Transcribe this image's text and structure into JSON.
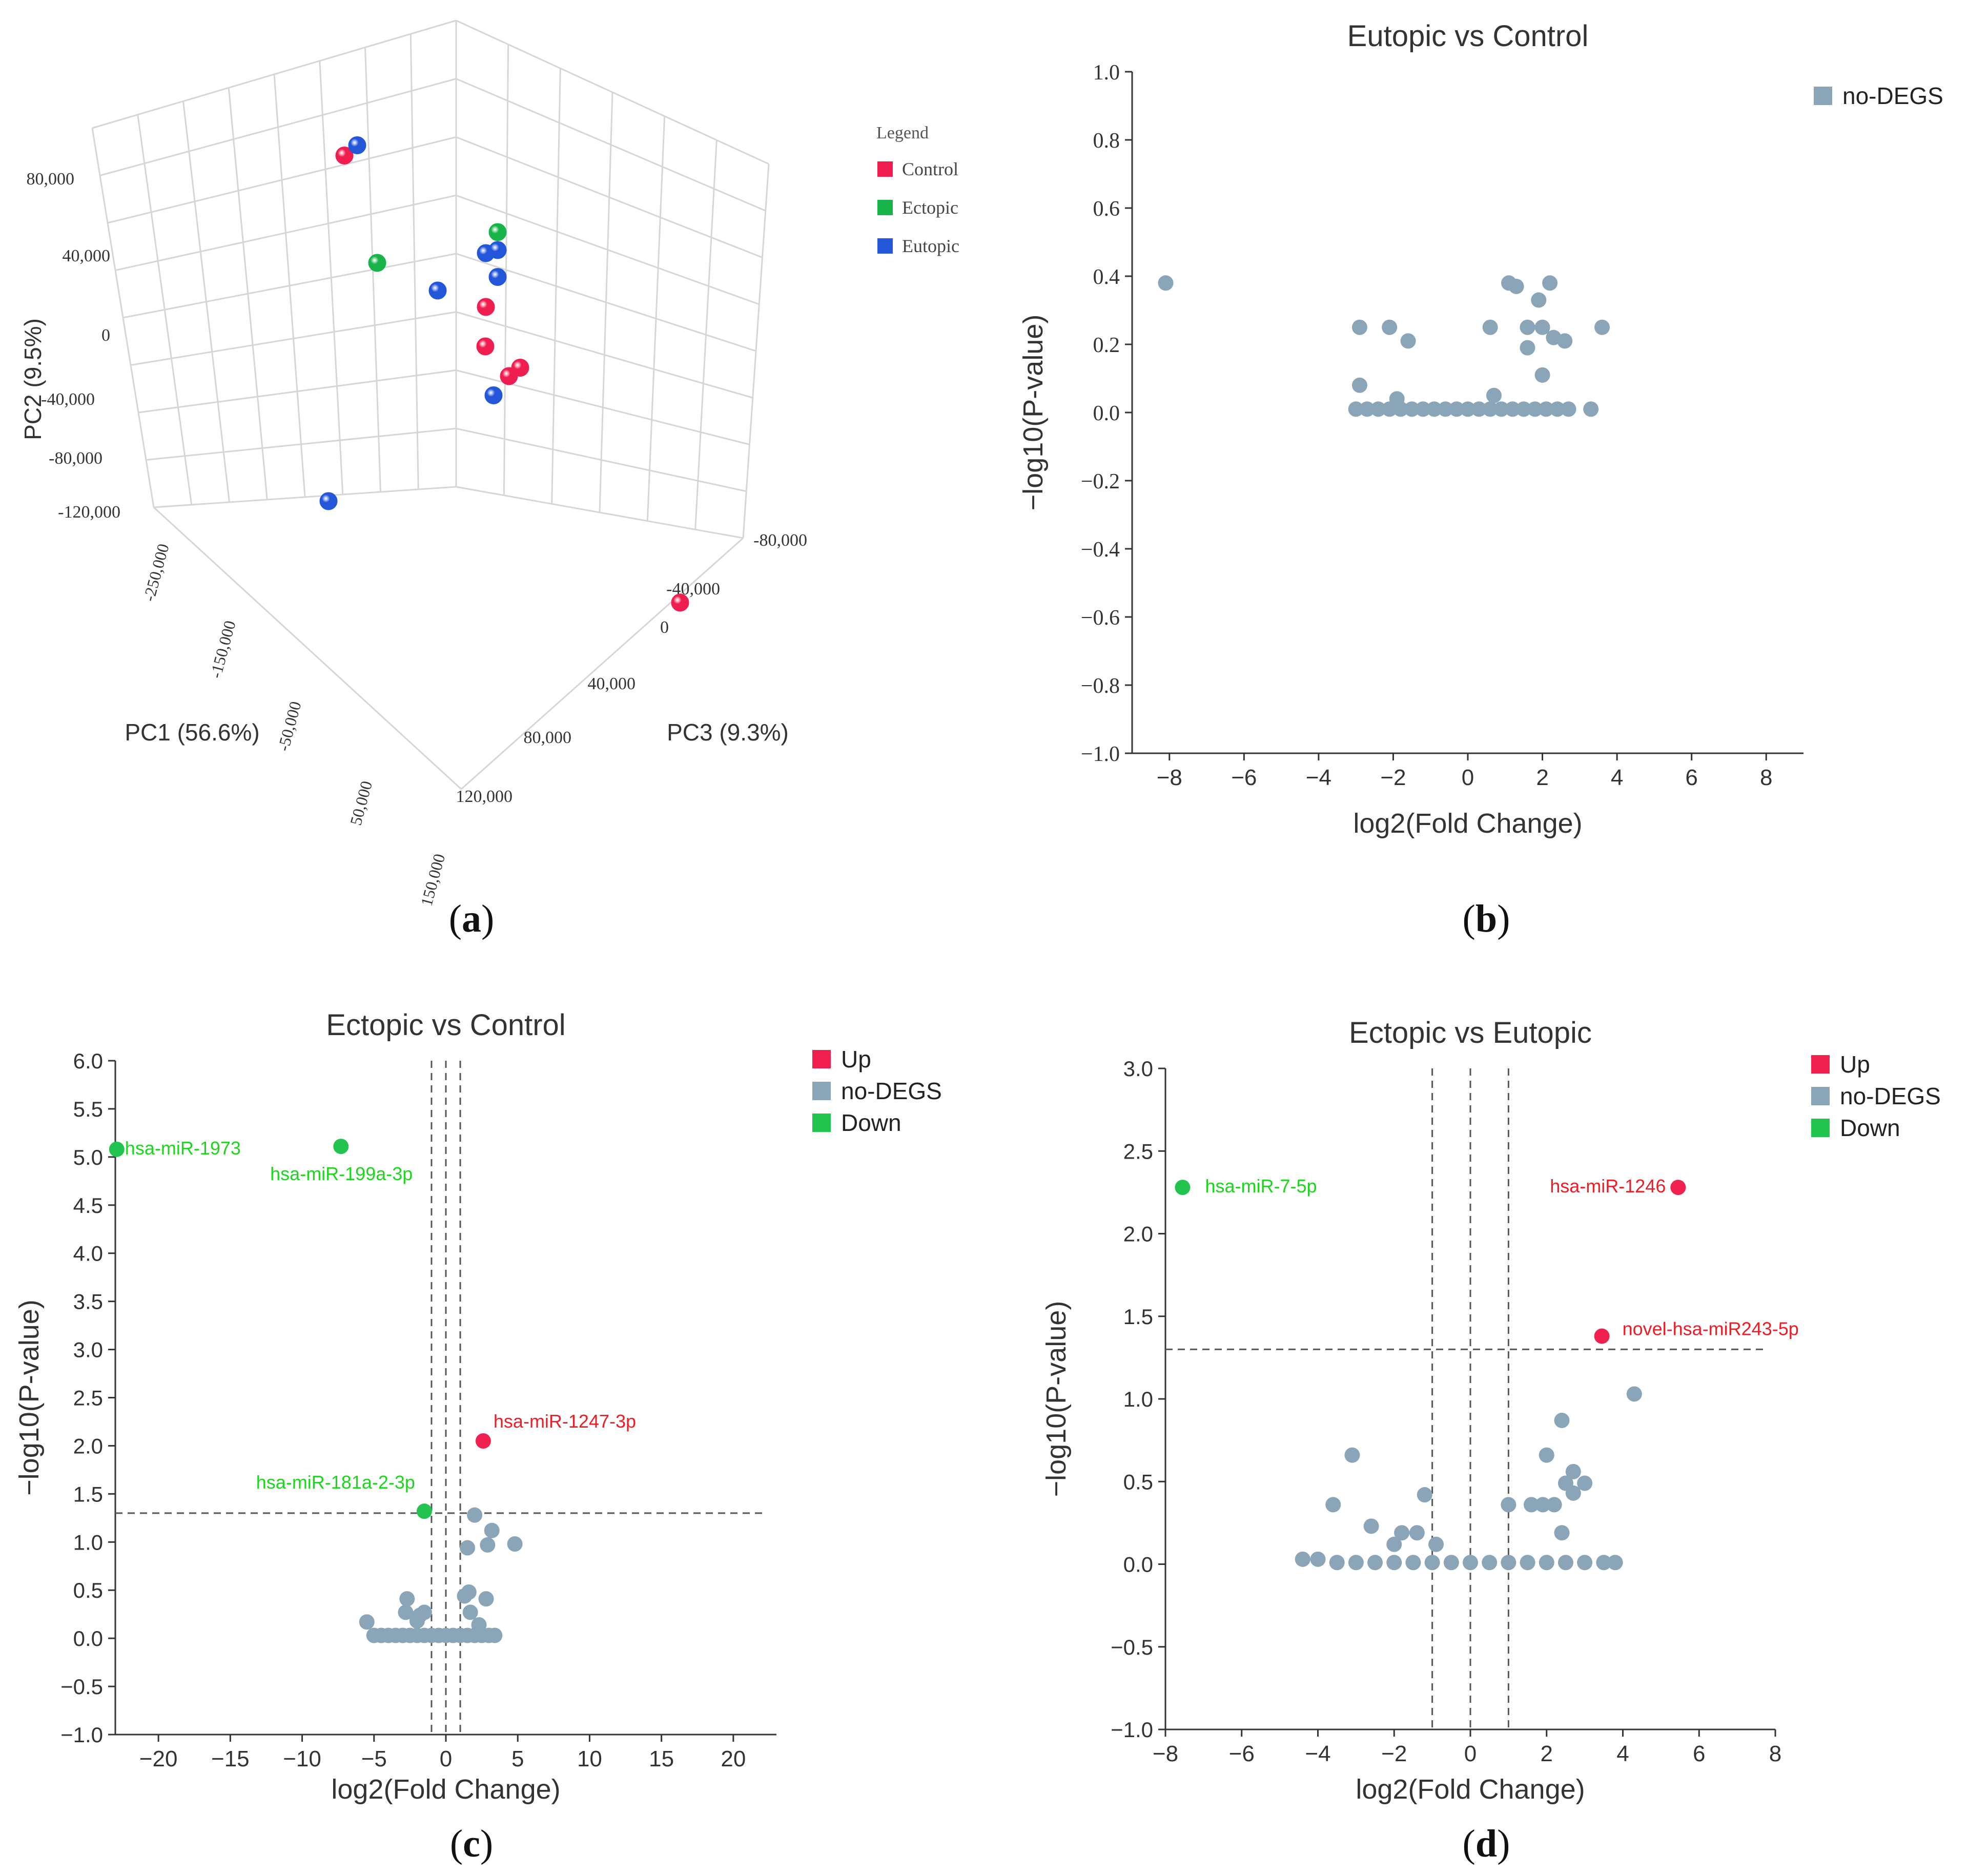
{
  "colors": {
    "control": "#ef1d50",
    "ectopic": "#18b44a",
    "eutopic": "#2456d9",
    "nodeg": "#8aa4b8",
    "up": "#f0204f",
    "down": "#22c44f",
    "down_label": "#1ed41e",
    "up_label": "#ee1c25",
    "grid": "#d6d6d6"
  },
  "panel_labels": {
    "a": "a",
    "b": "b",
    "c": "c",
    "d": "d"
  },
  "chart_data": [
    {
      "id": "a",
      "type": "scatter3d",
      "title": "",
      "axes": {
        "pc1": {
          "label": "PC1 (56.6%)",
          "ticks": [
            "-250,000",
            "-150,000",
            "-50,000",
            "50,000",
            "150,000"
          ]
        },
        "pc2": {
          "label": "PC2 (9.5%)",
          "ticks": [
            "80,000",
            "40,000",
            "0",
            "-40,000",
            "-80,000",
            "-120,000"
          ]
        },
        "pc3": {
          "label": "PC3 (9.3%)",
          "ticks": [
            "-80,000",
            "-40,000",
            "0",
            "40,000",
            "80,000",
            "120,000"
          ]
        }
      },
      "legend": {
        "title": "Legend",
        "items": [
          {
            "name": "Control",
            "color": "#ef1d50"
          },
          {
            "name": "Ectopic",
            "color": "#18b44a"
          },
          {
            "name": "Eutopic",
            "color": "#2456d9"
          }
        ]
      },
      "series": [
        {
          "name": "Control",
          "points": [
            {
              "pc1": -60000,
              "pc2": 75000,
              "pc3": -40000
            },
            {
              "pc1": 60000,
              "pc2": -30000,
              "pc3": -40000
            },
            {
              "pc1": 40000,
              "pc2": -40000,
              "pc3": -30000
            },
            {
              "pc1": 50000,
              "pc2": -45000,
              "pc3": -20000
            },
            {
              "pc1": 60000,
              "pc2": -60000,
              "pc3": -30000
            },
            {
              "pc1": -10000,
              "pc2": -80000,
              "pc3": 80000
            }
          ]
        },
        {
          "name": "Ectopic",
          "points": [
            {
              "pc1": -130000,
              "pc2": 70000,
              "pc3": 10000
            },
            {
              "pc1": 70000,
              "pc2": 10000,
              "pc3": -40000
            }
          ]
        },
        {
          "name": "Eutopic",
          "points": [
            {
              "pc1": -10000,
              "pc2": 55000,
              "pc3": -60000
            },
            {
              "pc1": -20000,
              "pc2": 10000,
              "pc3": -20000
            },
            {
              "pc1": -90000,
              "pc2": 15000,
              "pc3": 40000
            },
            {
              "pc1": 60000,
              "pc2": 0,
              "pc3": -40000
            },
            {
              "pc1": 70000,
              "pc2": 0,
              "pc3": -40000
            },
            {
              "pc1": 70000,
              "pc2": -15000,
              "pc3": -40000
            },
            {
              "pc1": -230000,
              "pc2": -20000,
              "pc3": 40000
            }
          ]
        }
      ]
    },
    {
      "id": "b",
      "type": "scatter",
      "title": "Eutopic vs Control",
      "xlabel": "log2(Fold Change)",
      "ylabel": "−log10(P-value)",
      "xlim": [
        -9,
        9
      ],
      "ylim": [
        -1.0,
        1.0
      ],
      "xticks": [
        -8,
        -6,
        -4,
        -2,
        0,
        2,
        4,
        6,
        8
      ],
      "xtick_labels": [
        "−8",
        "−6",
        "−4",
        "−2",
        "0",
        "2",
        "4",
        "6",
        "8"
      ],
      "yticks": [
        1.0,
        0.8,
        0.6,
        0.4,
        0.2,
        0.0,
        -0.2,
        -0.4,
        -0.6,
        -0.8,
        -1.0
      ],
      "ytick_labels": [
        "1.0",
        "0.8",
        "0.6",
        "0.4",
        "0.2",
        "0.0",
        "−0.2",
        "−0.4",
        "−0.6",
        "−0.8",
        "−1.0"
      ],
      "thresholds": {
        "x": [],
        "y": []
      },
      "legend": {
        "items": [
          {
            "name": "no-DEGS",
            "color": "#8aa4b8"
          }
        ]
      },
      "series": [
        {
          "name": "no-DEGS",
          "color": "#8aa4b8",
          "points": [
            [
              -8.1,
              0.38
            ],
            [
              -2.9,
              0.25
            ],
            [
              -2.1,
              0.25
            ],
            [
              -1.6,
              0.21
            ],
            [
              0.6,
              0.25
            ],
            [
              1.1,
              0.38
            ],
            [
              1.3,
              0.37
            ],
            [
              2.2,
              0.38
            ],
            [
              1.9,
              0.33
            ],
            [
              1.6,
              0.25
            ],
            [
              2.0,
              0.25
            ],
            [
              2.3,
              0.22
            ],
            [
              2.6,
              0.21
            ],
            [
              3.6,
              0.25
            ],
            [
              1.6,
              0.19
            ],
            [
              2.0,
              0.11
            ],
            [
              -2.9,
              0.08
            ],
            [
              0.7,
              0.05
            ],
            [
              -1.9,
              0.04
            ],
            [
              -3.0,
              0.01
            ],
            [
              -2.7,
              0.01
            ],
            [
              -2.4,
              0.01
            ],
            [
              -2.1,
              0.01
            ],
            [
              -1.8,
              0.01
            ],
            [
              -1.5,
              0.01
            ],
            [
              -1.2,
              0.01
            ],
            [
              -0.9,
              0.01
            ],
            [
              -0.6,
              0.01
            ],
            [
              -0.3,
              0.01
            ],
            [
              0.0,
              0.01
            ],
            [
              0.3,
              0.01
            ],
            [
              0.6,
              0.01
            ],
            [
              0.9,
              0.01
            ],
            [
              1.2,
              0.01
            ],
            [
              1.5,
              0.01
            ],
            [
              1.8,
              0.01
            ],
            [
              2.1,
              0.01
            ],
            [
              2.4,
              0.01
            ],
            [
              2.7,
              0.01
            ],
            [
              3.3,
              0.01
            ]
          ]
        }
      ],
      "labels": []
    },
    {
      "id": "c",
      "type": "scatter",
      "title": "Ectopic vs Control",
      "xlabel": "log2(Fold Change)",
      "ylabel": "−log10(P-value)",
      "xlim": [
        -23,
        23
      ],
      "ylim": [
        -1.0,
        6.0
      ],
      "xticks": [
        -20,
        -15,
        -10,
        -5,
        0,
        5,
        10,
        15,
        20
      ],
      "xtick_labels": [
        "−20",
        "−15",
        "−10",
        "−5",
        "0",
        "5",
        "10",
        "15",
        "20"
      ],
      "yticks": [
        6.0,
        5.5,
        5.0,
        4.5,
        4.0,
        3.5,
        3.0,
        2.5,
        2.0,
        1.5,
        1.0,
        0.5,
        0.0,
        -0.5,
        -1.0
      ],
      "ytick_labels": [
        "6.0",
        "5.5",
        "5.0",
        "4.5",
        "4.0",
        "3.5",
        "3.0",
        "2.5",
        "2.0",
        "1.5",
        "1.0",
        "0.5",
        "0.0",
        "−0.5",
        "−1.0"
      ],
      "thresholds": {
        "x": [
          -1,
          0,
          1
        ],
        "y": [
          1.3
        ]
      },
      "legend": {
        "items": [
          {
            "name": "Up",
            "color": "#f0204f"
          },
          {
            "name": "no-DEGS",
            "color": "#8aa4b8"
          },
          {
            "name": "Down",
            "color": "#22c44f"
          }
        ]
      },
      "series": [
        {
          "name": "Up",
          "color": "#f0204f",
          "points": [
            [
              2.6,
              2.05
            ]
          ]
        },
        {
          "name": "no-DEGS",
          "color": "#8aa4b8",
          "points": [
            [
              -5.5,
              0.17
            ],
            [
              -2.7,
              0.41
            ],
            [
              -2.8,
              0.27
            ],
            [
              -1.8,
              0.24
            ],
            [
              -1.5,
              0.27
            ],
            [
              -2.0,
              0.18
            ],
            [
              1.6,
              0.48
            ],
            [
              1.3,
              0.44
            ],
            [
              2.8,
              0.41
            ],
            [
              3.2,
              1.12
            ],
            [
              2.0,
              1.28
            ],
            [
              1.5,
              0.94
            ],
            [
              2.9,
              0.97
            ],
            [
              4.8,
              0.98
            ],
            [
              1.7,
              0.27
            ],
            [
              2.3,
              0.14
            ],
            [
              -5.0,
              0.03
            ],
            [
              -4.5,
              0.03
            ],
            [
              -4.0,
              0.03
            ],
            [
              -3.5,
              0.03
            ],
            [
              -3.0,
              0.03
            ],
            [
              -2.5,
              0.03
            ],
            [
              -2.0,
              0.03
            ],
            [
              -1.5,
              0.03
            ],
            [
              -1.0,
              0.03
            ],
            [
              -0.5,
              0.03
            ],
            [
              0.0,
              0.03
            ],
            [
              0.5,
              0.03
            ],
            [
              1.0,
              0.03
            ],
            [
              1.5,
              0.03
            ],
            [
              2.0,
              0.03
            ],
            [
              2.5,
              0.03
            ],
            [
              3.0,
              0.03
            ],
            [
              3.4,
              0.03
            ]
          ]
        },
        {
          "name": "Down",
          "color": "#22c44f",
          "points": [
            [
              -22.9,
              5.08
            ],
            [
              -7.3,
              5.11
            ],
            [
              -1.5,
              1.32
            ]
          ]
        }
      ],
      "labels": [
        {
          "text": "hsa-miR-1973",
          "x": -22.9,
          "y": 5.08,
          "anchor": "start",
          "dx": 16,
          "dy": 10,
          "color": "#1ed41e"
        },
        {
          "text": "hsa-miR-199a-3p",
          "x": -7.3,
          "y": 5.11,
          "anchor": "end",
          "dx": 140,
          "dy": 66,
          "color": "#1ed41e"
        },
        {
          "text": "hsa-miR-1247-3p",
          "x": 2.6,
          "y": 2.05,
          "anchor": "start",
          "dx": 20,
          "dy": -26,
          "color": "#ee1c25"
        },
        {
          "text": "hsa-miR-181a-2-3p",
          "x": -1.5,
          "y": 1.32,
          "anchor": "end",
          "dx": -18,
          "dy": -44,
          "color": "#1ed41e"
        }
      ]
    },
    {
      "id": "d",
      "type": "scatter",
      "title": "Ectopic vs Eutopic",
      "xlabel": "log2(Fold Change)",
      "ylabel": "−log10(P-value)",
      "xlim": [
        -8,
        8
      ],
      "ylim": [
        -1.0,
        3.0
      ],
      "xticks": [
        -8,
        -6,
        -4,
        -2,
        0,
        2,
        4,
        6,
        8
      ],
      "xtick_labels": [
        "−8",
        "−6",
        "−4",
        "−2",
        "0",
        "2",
        "4",
        "6",
        "8"
      ],
      "yticks": [
        3.0,
        2.5,
        2.0,
        1.5,
        1.0,
        0.5,
        0.0,
        -0.5,
        -1.0
      ],
      "ytick_labels": [
        "3.0",
        "2.5",
        "2.0",
        "1.5",
        "1.0",
        "0.5",
        "0.0",
        "−0.5",
        "−1.0"
      ],
      "thresholds": {
        "x": [
          -1,
          0,
          1
        ],
        "y": [
          1.3
        ]
      },
      "legend": {
        "items": [
          {
            "name": "Up",
            "color": "#f0204f"
          },
          {
            "name": "no-DEGS",
            "color": "#8aa4b8"
          },
          {
            "name": "Down",
            "color": "#22c44f"
          }
        ]
      },
      "series": [
        {
          "name": "Up",
          "color": "#f0204f",
          "points": [
            [
              5.45,
              2.28
            ],
            [
              3.45,
              1.38
            ]
          ]
        },
        {
          "name": "no-DEGS",
          "color": "#8aa4b8",
          "points": [
            [
              4.3,
              1.03
            ],
            [
              -3.1,
              0.66
            ],
            [
              -1.2,
              0.42
            ],
            [
              -3.6,
              0.36
            ],
            [
              2.4,
              0.87
            ],
            [
              2.0,
              0.66
            ],
            [
              2.5,
              0.49
            ],
            [
              2.7,
              0.56
            ],
            [
              3.0,
              0.49
            ],
            [
              2.7,
              0.43
            ],
            [
              1.6,
              0.36
            ],
            [
              1.9,
              0.36
            ],
            [
              2.2,
              0.36
            ],
            [
              1.0,
              0.36
            ],
            [
              -2.6,
              0.23
            ],
            [
              -1.8,
              0.19
            ],
            [
              -2.0,
              0.12
            ],
            [
              -1.4,
              0.19
            ],
            [
              -0.9,
              0.12
            ],
            [
              2.4,
              0.19
            ],
            [
              -4.4,
              0.03
            ],
            [
              -4.0,
              0.03
            ],
            [
              -3.5,
              0.01
            ],
            [
              -3.0,
              0.01
            ],
            [
              -2.5,
              0.01
            ],
            [
              -2.0,
              0.01
            ],
            [
              -1.5,
              0.01
            ],
            [
              -1.0,
              0.01
            ],
            [
              -0.5,
              0.01
            ],
            [
              0.0,
              0.01
            ],
            [
              0.5,
              0.01
            ],
            [
              1.0,
              0.01
            ],
            [
              1.5,
              0.01
            ],
            [
              2.0,
              0.01
            ],
            [
              2.5,
              0.01
            ],
            [
              3.0,
              0.01
            ],
            [
              3.5,
              0.01
            ],
            [
              3.8,
              0.01
            ]
          ]
        },
        {
          "name": "Down",
          "color": "#22c44f",
          "points": [
            [
              -7.55,
              2.28
            ]
          ]
        }
      ],
      "labels": [
        {
          "text": "hsa-miR-7-5p",
          "x": -7.55,
          "y": 2.28,
          "anchor": "start",
          "dx": 44,
          "dy": 10,
          "color": "#1ed41e"
        },
        {
          "text": "hsa-miR-1246",
          "x": 5.45,
          "y": 2.28,
          "anchor": "end",
          "dx": -24,
          "dy": 10,
          "color": "#ee1c25"
        },
        {
          "text": "novel-hsa-miR243-5p",
          "x": 3.45,
          "y": 1.38,
          "anchor": "start",
          "dx": 40,
          "dy": -2,
          "color": "#ee1c25"
        }
      ]
    }
  ]
}
